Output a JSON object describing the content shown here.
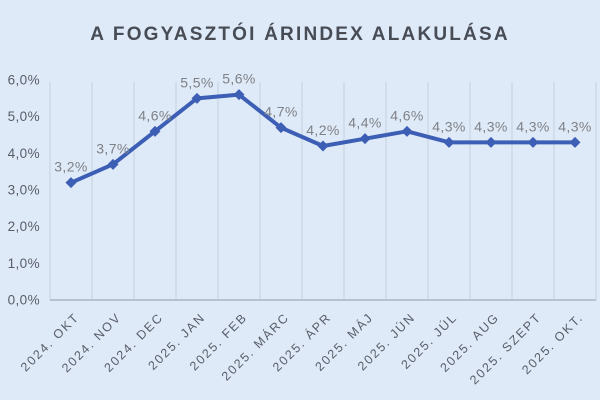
{
  "chart_data": {
    "type": "line",
    "title": "A FOGYASZTÓI ÁRINDEX ALAKULÁSA",
    "categories": [
      "2024. OKT",
      "2024. NOV",
      "2024. DEC",
      "2025. JAN",
      "2025. FEB",
      "2025. MÁRC",
      "2025. ÁPR",
      "2025. MÁJ",
      "2025. JÚN",
      "2025. JÚL",
      "2025. AUG",
      "2025. SZEPT",
      "2025. OKT."
    ],
    "values": [
      3.2,
      3.7,
      4.6,
      5.5,
      5.6,
      4.7,
      4.2,
      4.4,
      4.6,
      4.3,
      4.3,
      4.3,
      4.3
    ],
    "data_labels": [
      "3,2%",
      "3,7%",
      "4,6%",
      "5,5%",
      "5,6%",
      "4,7%",
      "4,2%",
      "4,4%",
      "4,6%",
      "4,3%",
      "4,3%",
      "4,3%",
      "4,3%"
    ],
    "y_tick_labels": [
      "0,0%",
      "1,0%",
      "2,0%",
      "3,0%",
      "4,0%",
      "5,0%",
      "6,0%"
    ],
    "y_tick_values": [
      0,
      1,
      2,
      3,
      4,
      5,
      6
    ],
    "ylim": [
      0,
      6
    ],
    "xlabel": "",
    "ylabel": "",
    "grid": "vertical-only",
    "legend": "none",
    "marker": "diamond"
  },
  "colors": {
    "background": "#dfeaf9",
    "title_text": "#474c55",
    "line": "#3c5fb5",
    "gridline": "#c5d0e0",
    "axis_line": "#a9b4c6",
    "tick_text": "#585d67",
    "data_label_text": "#7e8186"
  }
}
